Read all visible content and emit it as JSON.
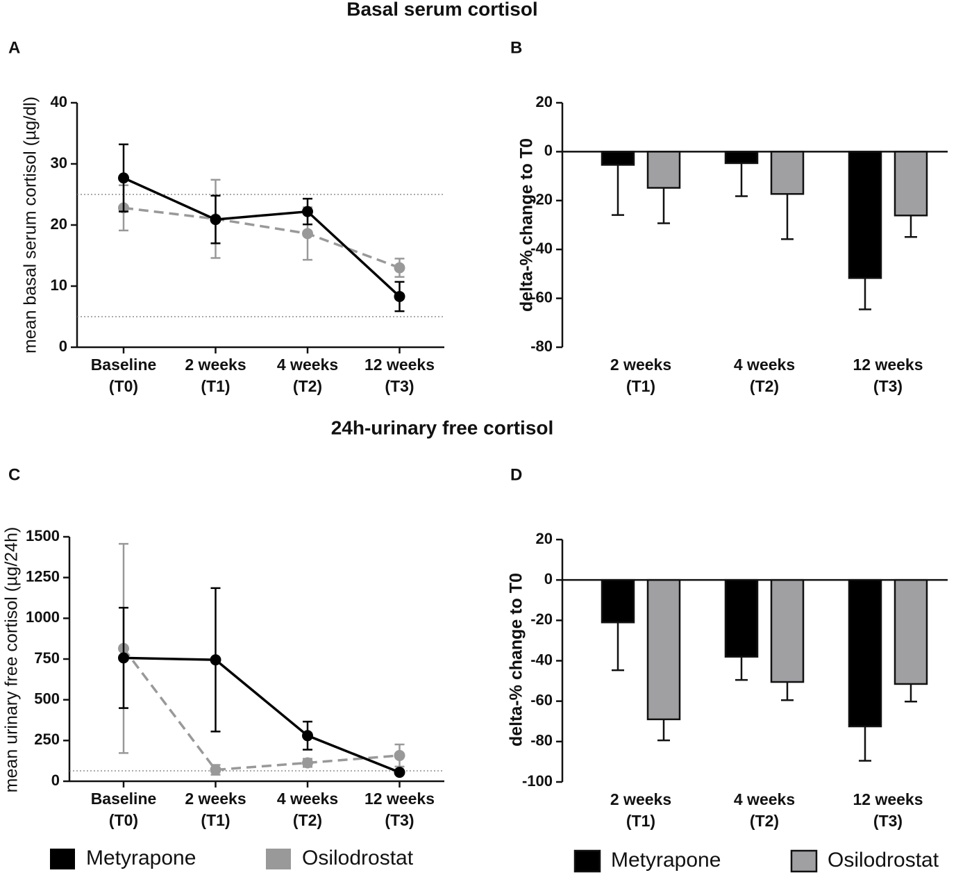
{
  "section_titles": [
    "Basal serum cortisol",
    "24h-urinary free cortisol"
  ],
  "chart_data": [
    {
      "type": "line",
      "panel": "A",
      "y_label": "mean basal serum cortisol (µg/dl)",
      "categories": [
        "Baseline (T0)",
        "2 weeks (T1)",
        "4 weeks (T2)",
        "12 weeks (T3)"
      ],
      "series": [
        {
          "name": "Metyrapone",
          "color": "#000000",
          "line_style": "solid",
          "values": [
            27.7,
            20.9,
            22.2,
            8.3
          ],
          "errors": [
            5.5,
            3.9,
            2.1,
            2.4
          ]
        },
        {
          "name": "Osilodrostat",
          "color": "#999999",
          "line_style": "dashed",
          "values": [
            22.8,
            21.0,
            18.6,
            13.0
          ],
          "errors": [
            3.7,
            6.4,
            4.3,
            1.5
          ]
        }
      ],
      "ylim": [
        0,
        40
      ],
      "yticks": [
        0,
        10,
        20,
        30,
        40
      ],
      "reference_lines": [
        25,
        5
      ],
      "legend": false
    },
    {
      "type": "bar",
      "panel": "B",
      "y_label": "delta-% change to T0",
      "categories": [
        "2 weeks (T1)",
        "4 weeks (T2)",
        "12 weeks (T3)"
      ],
      "series": [
        {
          "name": "Metyrapone",
          "color": "#000000",
          "values": [
            -5.4,
            -4.7,
            -51.7
          ],
          "errors": [
            20.5,
            13.5,
            12.8
          ]
        },
        {
          "name": "Osilodrostat",
          "color": "#a0a0a3",
          "values": [
            -14.8,
            -17.3,
            -26.1
          ],
          "errors": [
            14.5,
            18.5,
            8.8
          ]
        }
      ],
      "ylim": [
        -80,
        20
      ],
      "yticks": [
        -80,
        -60,
        -40,
        -20,
        0,
        20
      ],
      "legend": false
    },
    {
      "type": "line",
      "panel": "C",
      "y_label": "mean urinary free cortisol (µg/24h)",
      "categories": [
        "Baseline (T0)",
        "2 weeks (T1)",
        "4 weeks (T2)",
        "12 weeks (T3)"
      ],
      "series": [
        {
          "name": "Metyrapone",
          "color": "#000000",
          "line_style": "solid",
          "values": [
            757,
            745,
            280,
            55
          ],
          "errors": [
            308,
            440,
            86,
            10
          ]
        },
        {
          "name": "Osilodrostat",
          "color": "#999999",
          "line_style": "dashed",
          "values": [
            815,
            70,
            113,
            158
          ],
          "errors": [
            642,
            30,
            25,
            68
          ]
        }
      ],
      "ylim": [
        0,
        1500
      ],
      "yticks": [
        0,
        250,
        500,
        750,
        1000,
        1250,
        1500
      ],
      "reference_lines": [
        64
      ],
      "legend": true
    },
    {
      "type": "bar",
      "panel": "D",
      "y_label": "delta-% change to T0",
      "categories": [
        "2 weeks (T1)",
        "4 weeks (T2)",
        "12 weeks (T3)"
      ],
      "series": [
        {
          "name": "Metyrapone",
          "color": "#000000",
          "values": [
            -21,
            -38,
            -72.5
          ],
          "errors": [
            23.7,
            11.5,
            17
          ]
        },
        {
          "name": "Osilodrostat",
          "color": "#a0a0a3",
          "values": [
            -69,
            -50.5,
            -51.5
          ],
          "errors": [
            10.4,
            9,
            8.7
          ]
        }
      ],
      "ylim": [
        -100,
        20
      ],
      "yticks": [
        -100,
        -80,
        -60,
        -40,
        -20,
        0,
        20
      ],
      "legend": true
    }
  ]
}
